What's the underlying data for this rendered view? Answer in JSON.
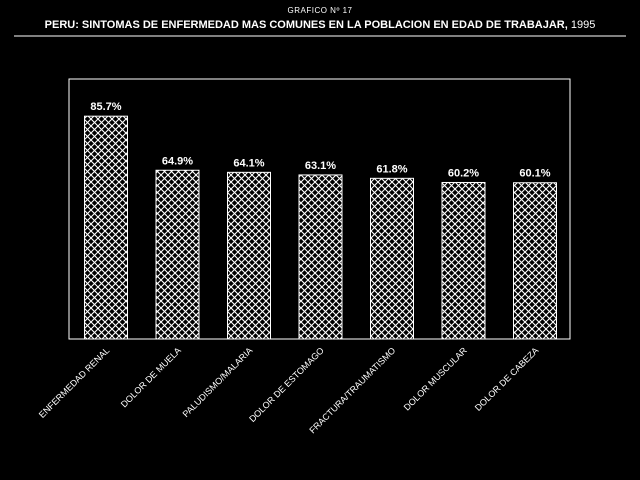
{
  "header": {
    "supertitle": "GRAFICO  Nº 17",
    "title": "PERU: SINTOMAS DE ENFERMEDAD MAS COMUNES EN LA POBLACION EN EDAD DE TRABAJAR,",
    "year": "1995"
  },
  "colors": {
    "background": "#000000",
    "foreground": "#ffffff"
  },
  "chart_data": {
    "type": "bar",
    "title": "PERU: SINTOMAS DE ENFERMEDAD MAS COMUNES EN LA POBLACION EN EDAD DE TRABAJAR, 1995",
    "xlabel": "",
    "ylabel": "",
    "ylim": [
      0,
      100
    ],
    "grid": false,
    "legend": "none",
    "bar_fill": "white crosshatch",
    "categories": [
      "ENFERMEDAD RENAL",
      "DOLOR DE MUELA",
      "PALUDISMO/MALARIA",
      "DOLOR DE ESTOMAGO",
      "FRACTURA/TRAUMATISMO",
      "DOLOR MUSCULAR",
      "DOLOR DE CABEZA"
    ],
    "values": [
      85.7,
      64.9,
      64.1,
      63.1,
      61.8,
      60.2,
      60.1
    ],
    "data_labels": [
      "85.7%",
      "64.9%",
      "64.1%",
      "63.1%",
      "61.8%",
      "60.2%",
      "60.1%"
    ]
  }
}
